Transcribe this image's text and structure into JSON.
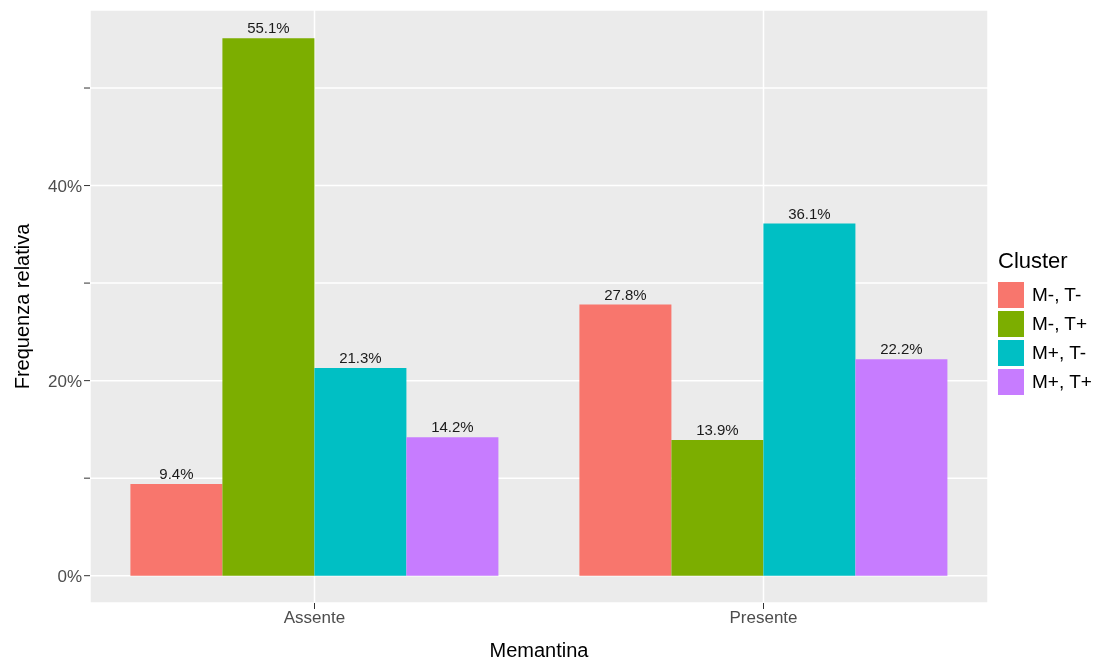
{
  "chart_data": {
    "type": "bar",
    "xlabel": "Memantina",
    "ylabel": "Frequenza relativa",
    "legend_title": "Cluster",
    "categories": [
      "Assente",
      "Presente"
    ],
    "series": [
      {
        "name": "M-, T-",
        "color": "#f8766d",
        "values": [
          9.4,
          27.8
        ],
        "value_labels": [
          "9.4%",
          "27.8%"
        ]
      },
      {
        "name": "M-, T+",
        "color": "#7cae00",
        "values": [
          55.1,
          13.9
        ],
        "value_labels": [
          "55.1%",
          "13.9%"
        ]
      },
      {
        "name": "M+, T-",
        "color": "#00bfc4",
        "values": [
          21.3,
          36.1
        ],
        "value_labels": [
          "21.3%",
          "36.1%"
        ]
      },
      {
        "name": "M+, T+",
        "color": "#c77cff",
        "values": [
          14.2,
          22.2
        ],
        "value_labels": [
          "14.2%",
          "22.2%"
        ]
      }
    ],
    "ylim": [
      -2.8,
      58
    ],
    "yticks": [
      {
        "value": 0,
        "label": "0%"
      },
      {
        "value": 10,
        "label": null
      },
      {
        "value": 20,
        "label": "20%"
      },
      {
        "value": 30,
        "label": null
      },
      {
        "value": 40,
        "label": "40%"
      },
      {
        "value": 50,
        "label": null
      }
    ],
    "grid": true,
    "legend": "right"
  }
}
